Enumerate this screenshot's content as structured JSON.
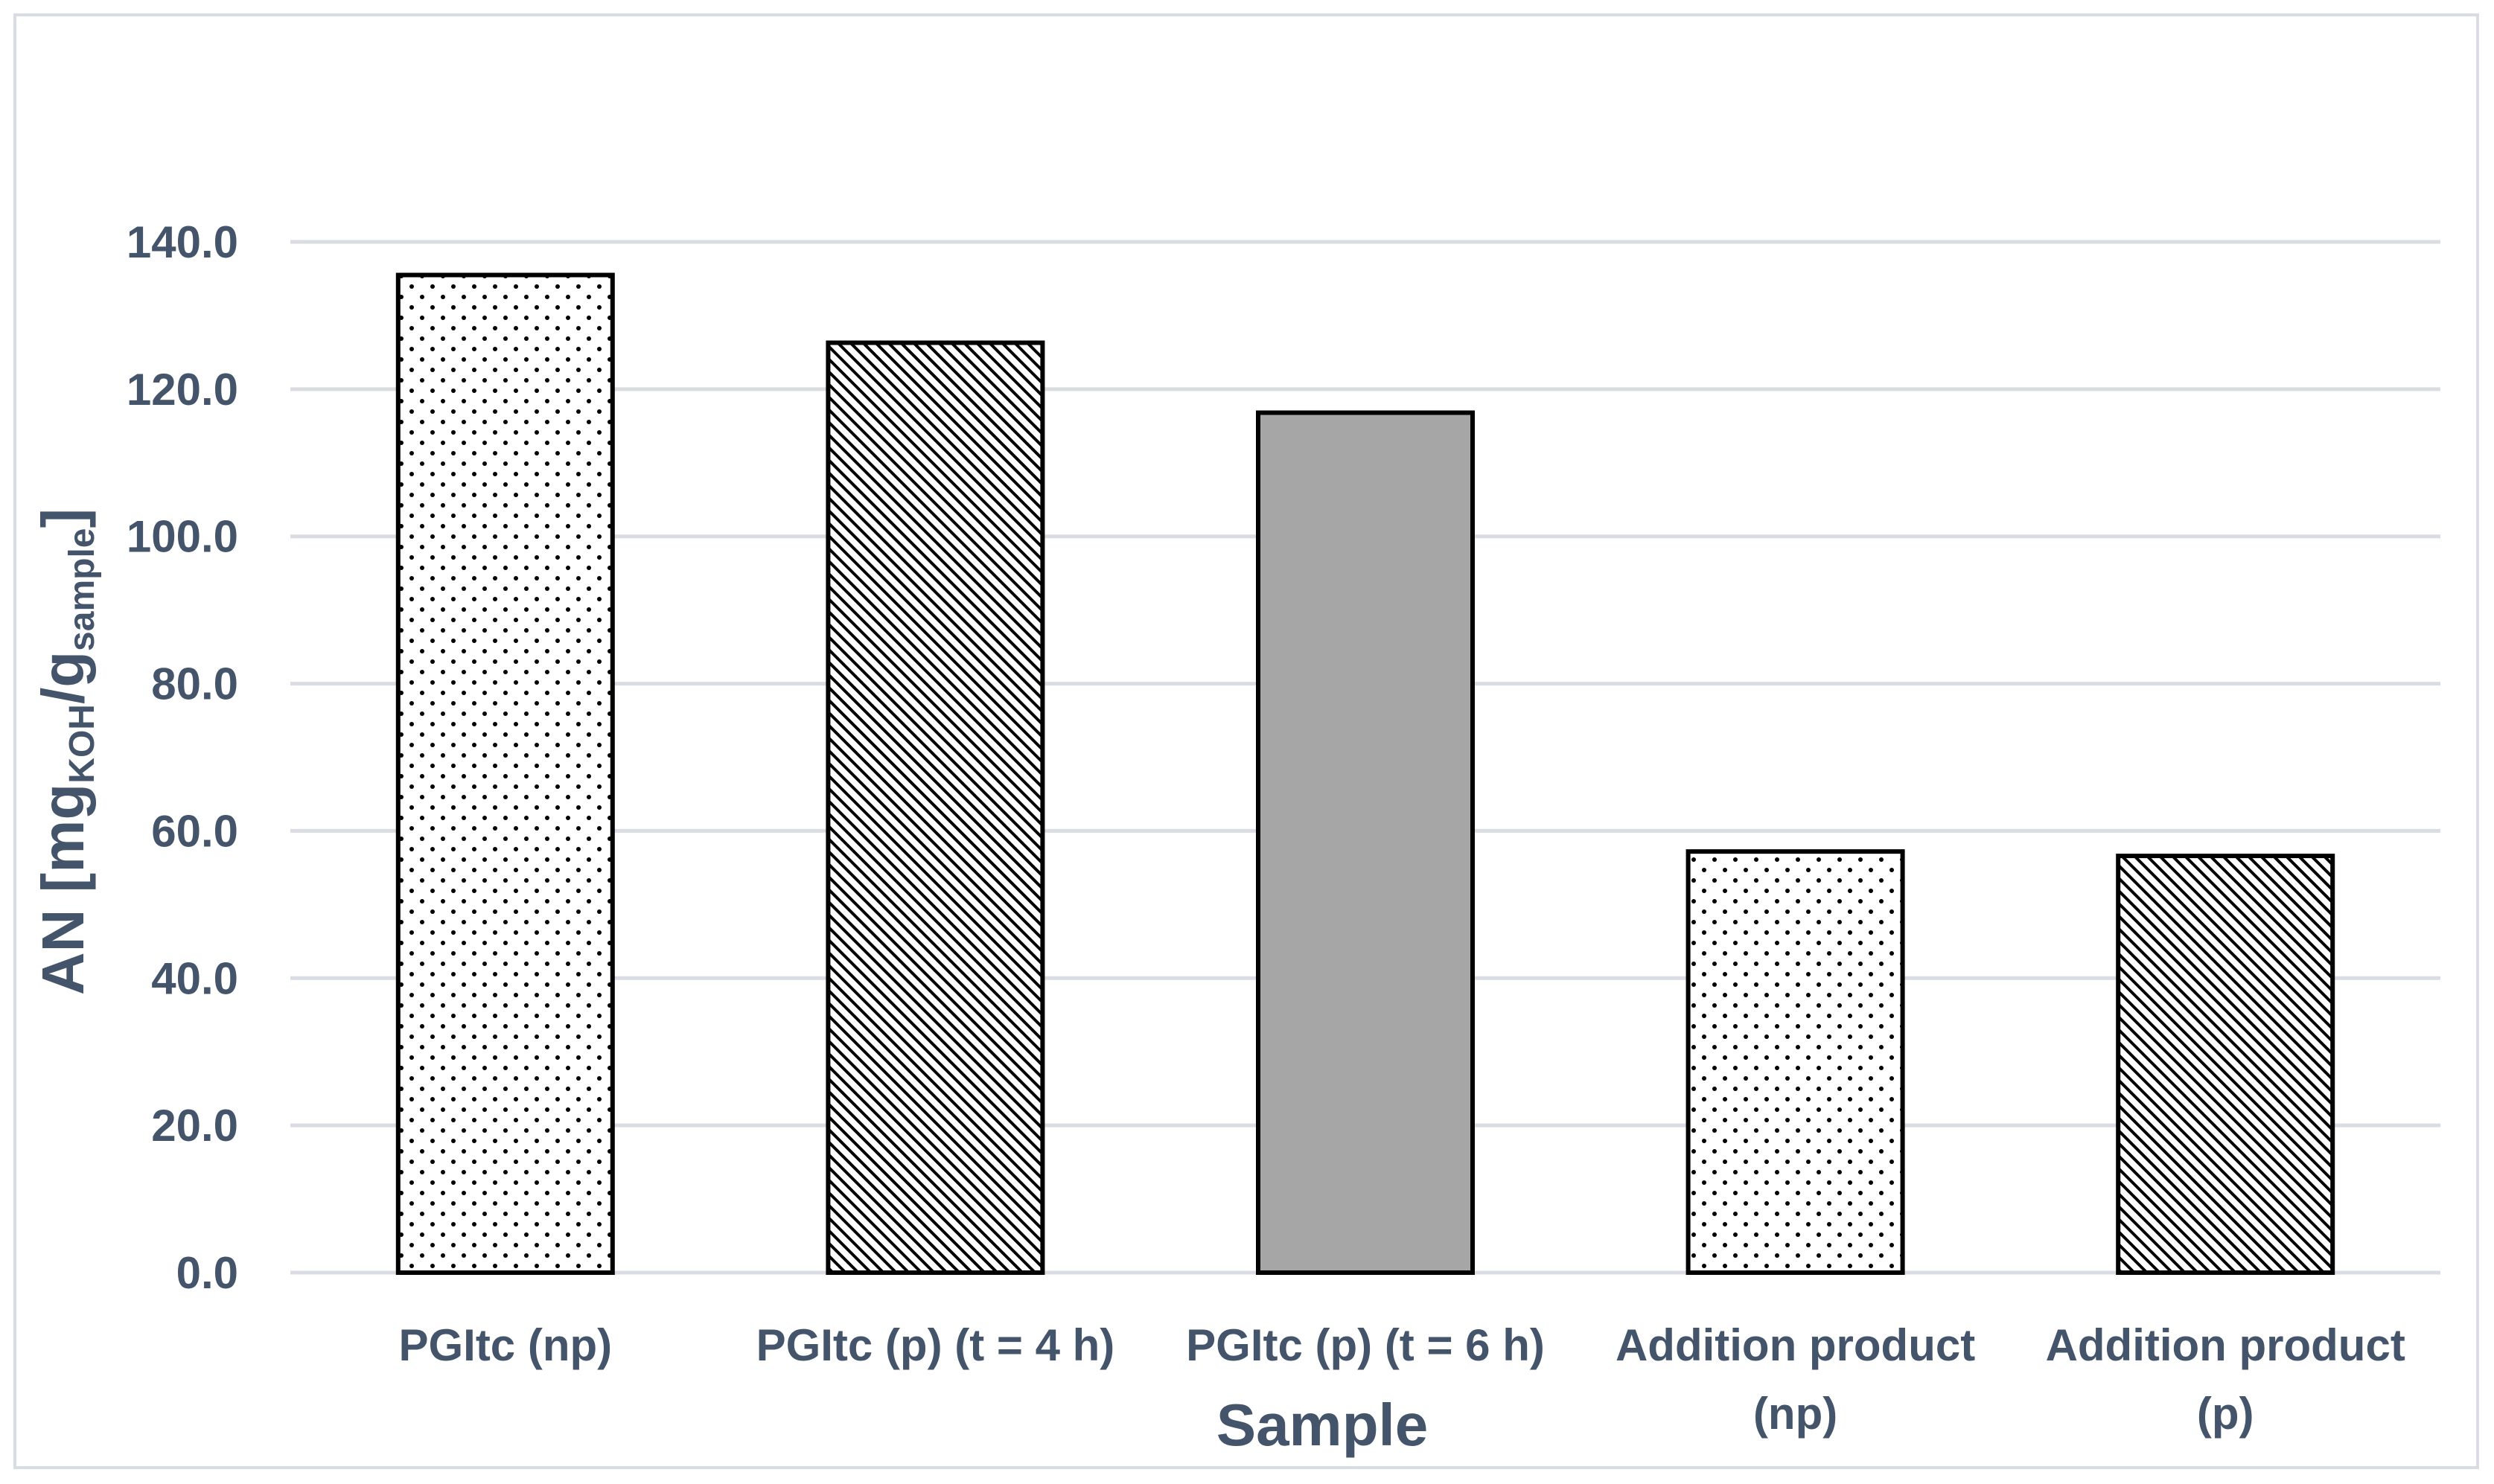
{
  "chart_data": {
    "type": "bar",
    "categories": [
      [
        "PGItc (np)"
      ],
      [
        "PGItc (p) (t = 4 h)"
      ],
      [
        "PGItc (p) (t = 6 h)"
      ],
      [
        "Addition product",
        "(np)"
      ],
      [
        "Addition product",
        "(p)"
      ]
    ],
    "values": [
      135.5,
      126.3,
      116.8,
      57.2,
      56.6
    ],
    "fills": [
      "dots",
      "hatch",
      "solid",
      "dots",
      "hatch"
    ],
    "xlabel": "Sample",
    "ylabel": {
      "main": "AN [mg",
      "sub1": "KOH",
      "mid": "/g",
      "sub2": "sample",
      "end": "]"
    },
    "ylim": [
      0,
      140
    ],
    "yticks": [
      "0.0",
      "20.0",
      "40.0",
      "60.0",
      "80.0",
      "100.0",
      "120.0",
      "140.0"
    ],
    "grid": true,
    "colors": {
      "axis_text": "#44546a",
      "grid": "#d9dde3",
      "bar_solid": "#a6a6a6",
      "bar_stroke": "#000000"
    }
  }
}
